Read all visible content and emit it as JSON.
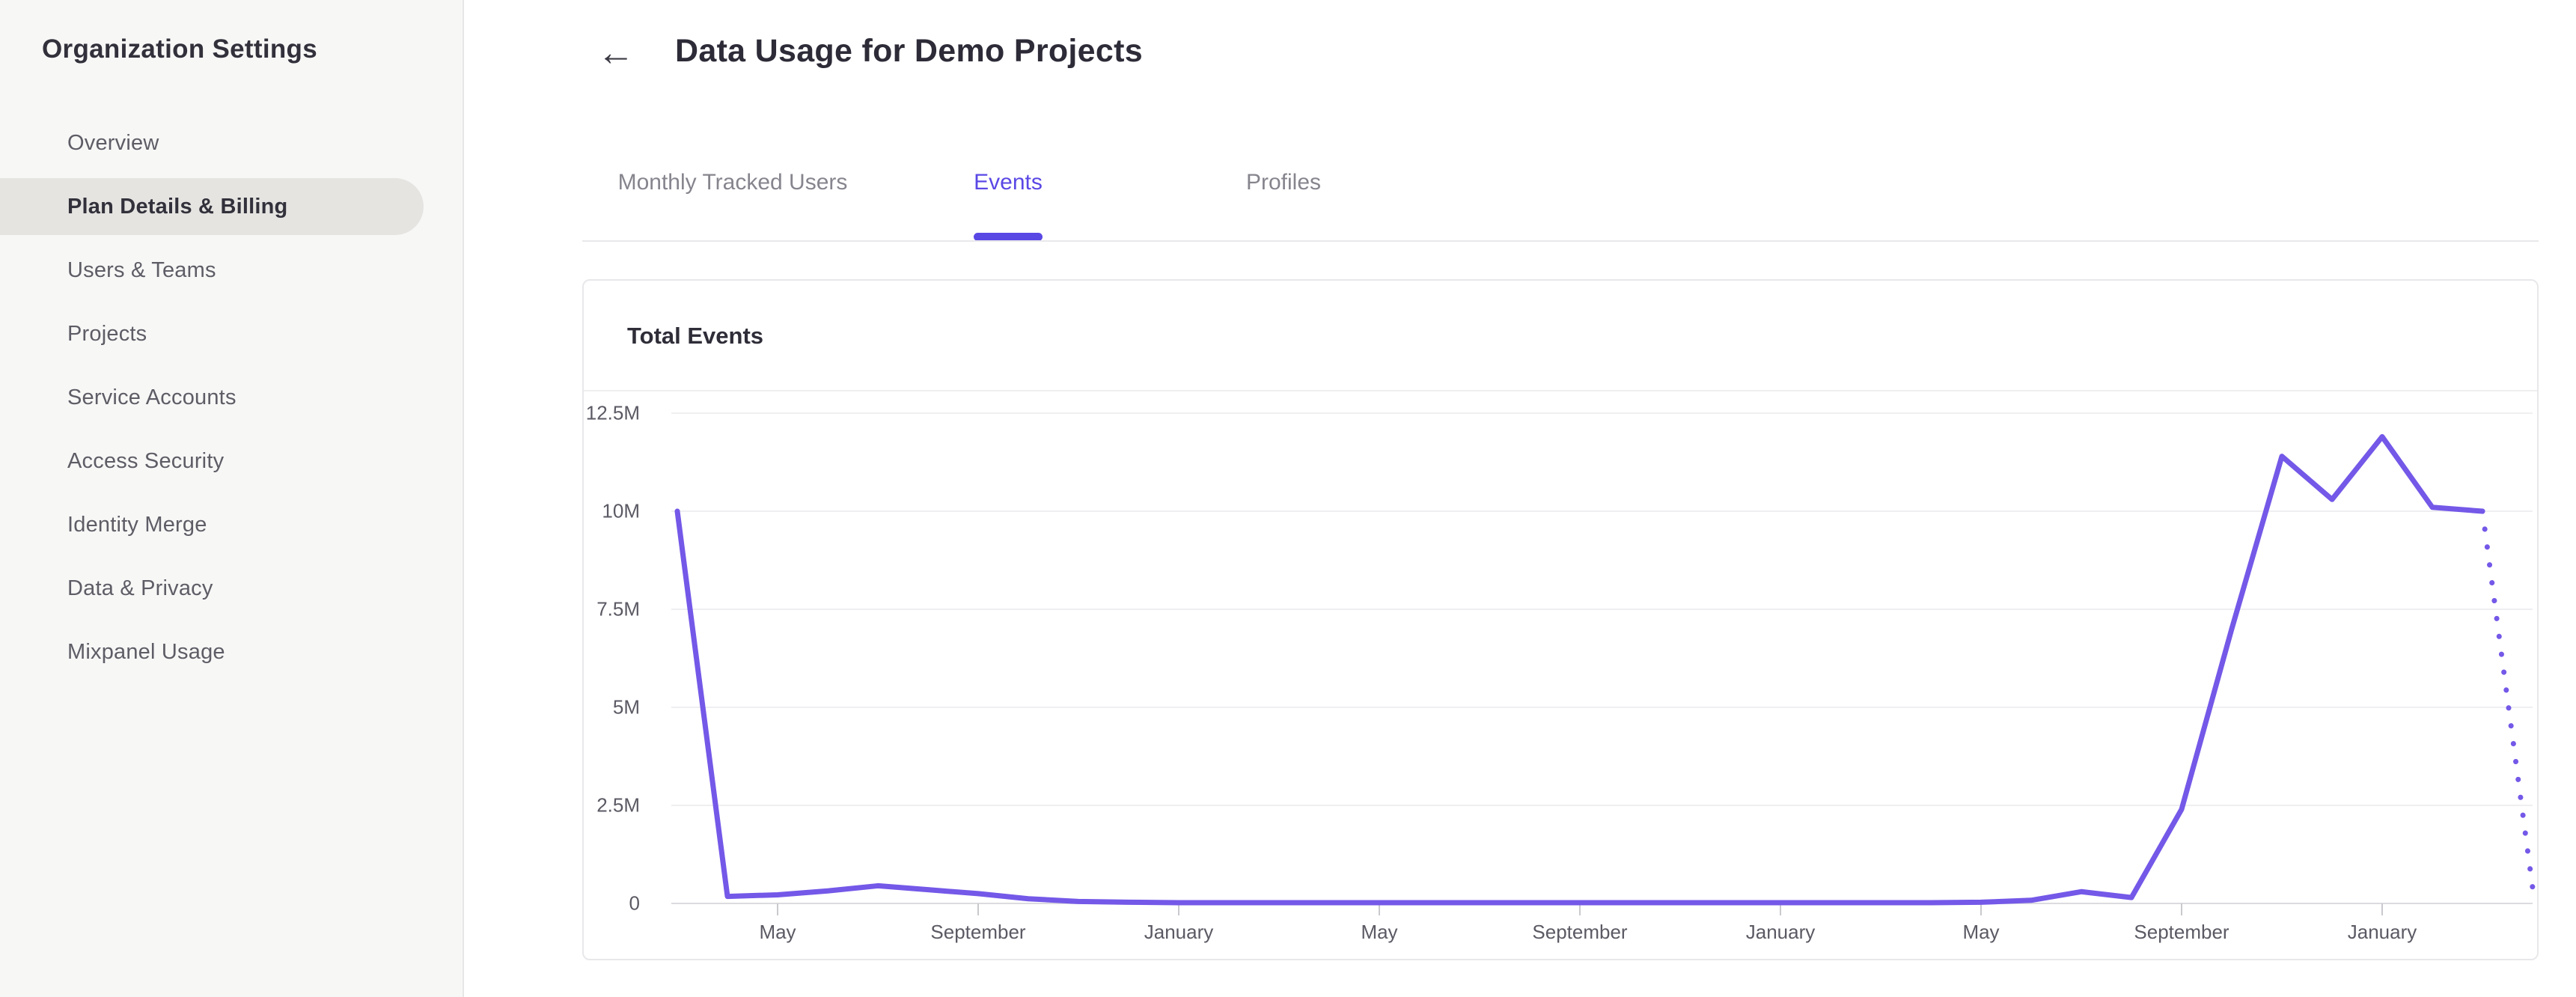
{
  "sidebar": {
    "title": "Organization Settings",
    "items": [
      {
        "label": "Overview",
        "active": false
      },
      {
        "label": "Plan Details & Billing",
        "active": true
      },
      {
        "label": "Users & Teams",
        "active": false
      },
      {
        "label": "Projects",
        "active": false
      },
      {
        "label": "Service Accounts",
        "active": false
      },
      {
        "label": "Access Security",
        "active": false
      },
      {
        "label": "Identity Merge",
        "active": false
      },
      {
        "label": "Data & Privacy",
        "active": false
      },
      {
        "label": "Mixpanel Usage",
        "active": false
      }
    ]
  },
  "header": {
    "back_label": "←",
    "title": "Data Usage for Demo Projects"
  },
  "tabs": [
    {
      "label": "Monthly Tracked Users",
      "active": false
    },
    {
      "label": "Events",
      "active": true
    },
    {
      "label": "Profiles",
      "active": false
    }
  ],
  "card": {
    "title": "Total Events"
  },
  "colors": {
    "accent": "#5a48e5",
    "chart_line": "#7458e8",
    "sidebar_bg": "#f7f7f6",
    "active_item_bg": "#e5e4e1",
    "gridline": "#efeff2",
    "axis_line": "#dbdbdf",
    "tick_mark": "#c9c9ce"
  },
  "chart_data": {
    "type": "line",
    "title": "Total Events",
    "xlabel": "",
    "ylabel": "",
    "ylim_millions": [
      0,
      12.5
    ],
    "grid": "horizontal",
    "legend": "none",
    "y_ticks": [
      {
        "value_millions": 0,
        "label": "0"
      },
      {
        "value_millions": 2.5,
        "label": "2.5M"
      },
      {
        "value_millions": 5,
        "label": "5M"
      },
      {
        "value_millions": 7.5,
        "label": "7.5M"
      },
      {
        "value_millions": 10,
        "label": "10M"
      },
      {
        "value_millions": 12.5,
        "label": "12.5M"
      }
    ],
    "x_ticks": [
      {
        "month_index": 2,
        "label": "May"
      },
      {
        "month_index": 6,
        "label": "September"
      },
      {
        "month_index": 10,
        "label": "January"
      },
      {
        "month_index": 14,
        "label": "May"
      },
      {
        "month_index": 18,
        "label": "September"
      },
      {
        "month_index": 22,
        "label": "January"
      },
      {
        "month_index": 26,
        "label": "May"
      },
      {
        "month_index": 30,
        "label": "September"
      },
      {
        "month_index": 34,
        "label": "January"
      }
    ],
    "series": [
      {
        "name": "Total Events",
        "style": "solid",
        "dotted_tail_points": 1,
        "values_millions": [
          10,
          0.18,
          0.22,
          0.32,
          0.45,
          0.35,
          0.25,
          0.12,
          0.05,
          0.03,
          0.02,
          0.02,
          0.02,
          0.02,
          0.02,
          0.02,
          0.02,
          0.02,
          0.02,
          0.02,
          0.02,
          0.02,
          0.02,
          0.02,
          0.02,
          0.02,
          0.03,
          0.08,
          0.3,
          0.15,
          2.4,
          7.0,
          11.4,
          10.3,
          11.9,
          10.1,
          10.0,
          0.4
        ]
      }
    ]
  }
}
